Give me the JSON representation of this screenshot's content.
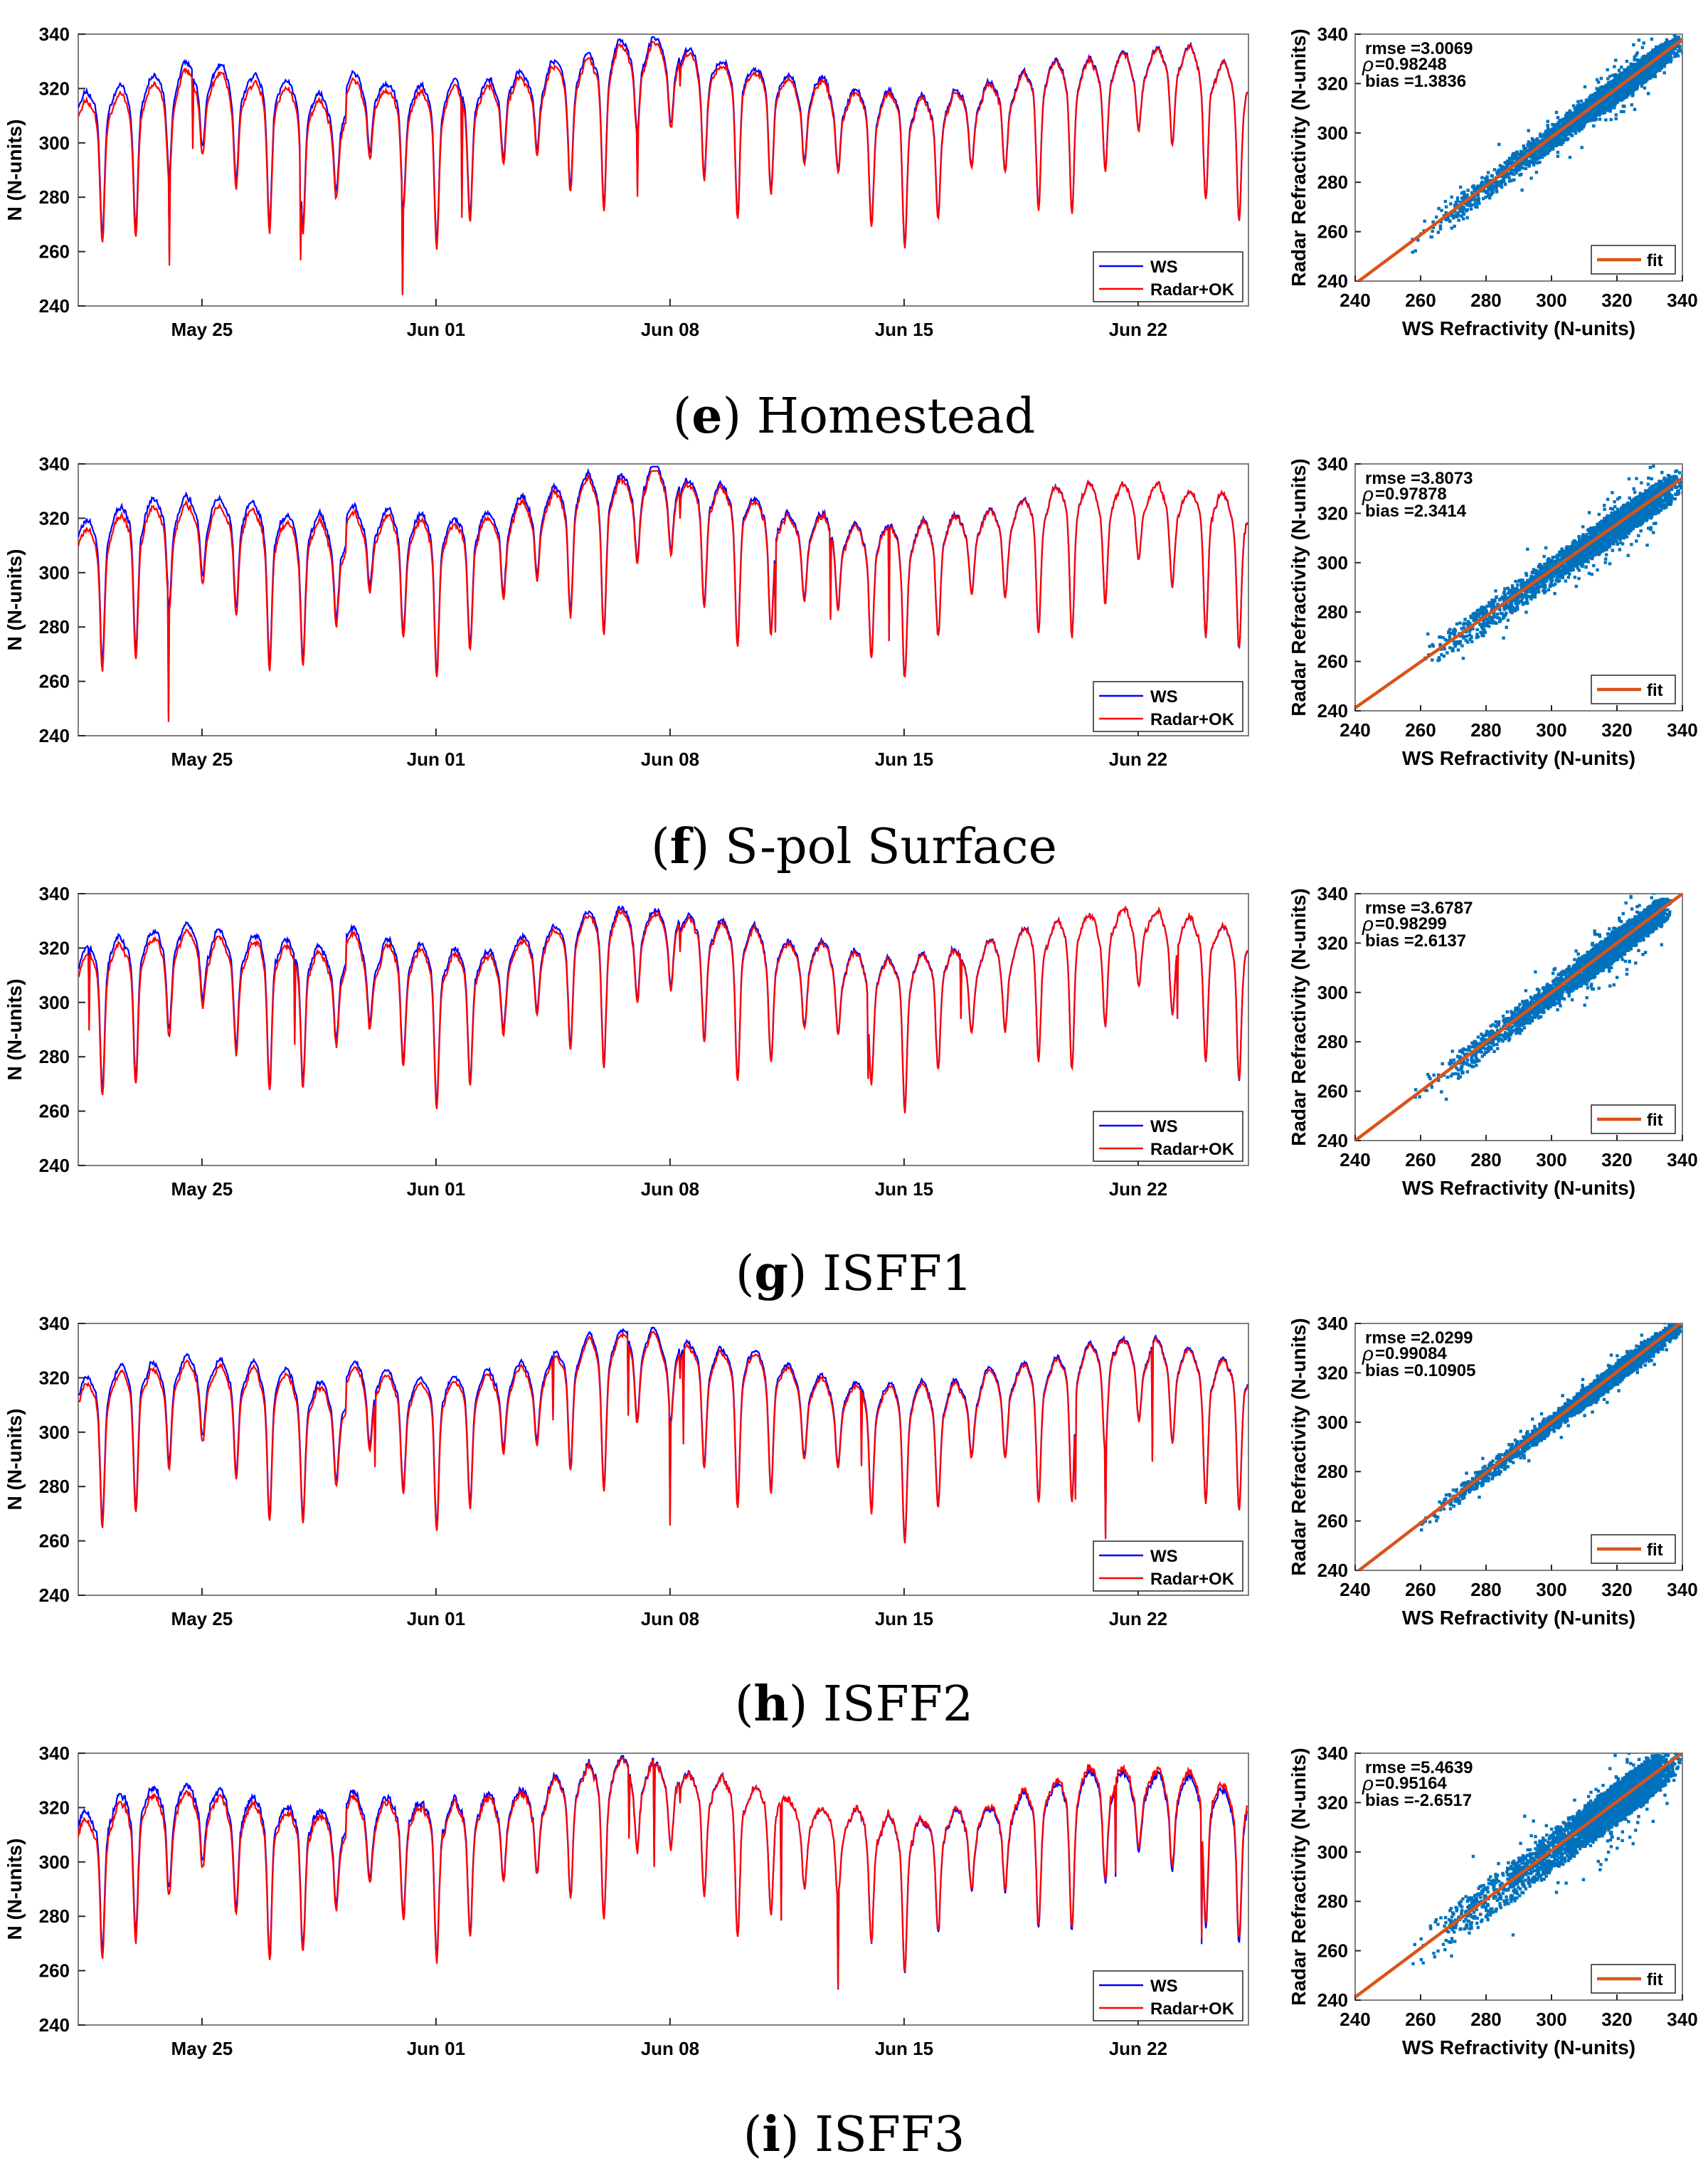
{
  "page": {
    "background": "#ffffff"
  },
  "colors": {
    "ws": "#0000ff",
    "radar": "#ff0000",
    "scatter": "#0072bd",
    "fit": "#d95319",
    "axis": "#262626",
    "frame": "#7f7f7f"
  },
  "axes_common": {
    "timeseries": {
      "ylabel": "N (N-units)",
      "ylim": [
        240,
        340
      ],
      "yticks": [
        "240",
        "260",
        "280",
        "300",
        "320",
        "340"
      ],
      "xrange_days": [
        0,
        35
      ],
      "xtick_days": [
        3.7,
        10.7,
        17.7,
        24.7,
        31.7
      ],
      "xticks": [
        "May 25",
        "Jun 01",
        "Jun 08",
        "Jun 15",
        "Jun 22"
      ],
      "legend": {
        "ws": "WS",
        "radar": "Radar+OK",
        "position": "bottom-right"
      }
    },
    "scatter": {
      "xlabel": "WS Refractivity (N-units)",
      "ylabel": "Radar Refractivity (N-units)",
      "lim": [
        240,
        340
      ],
      "ticks": [
        "240",
        "260",
        "280",
        "300",
        "320",
        "340"
      ],
      "legend": {
        "fit": "fit",
        "position": "bottom-right"
      },
      "rho_symbol": "ρ"
    }
  },
  "chart_data": [
    {
      "id": "e",
      "type": "line",
      "caption_letter": "e",
      "caption_name": "Homestead",
      "series_names": [
        "WS",
        "Radar+OK"
      ],
      "stats": {
        "rmse": "rmse =3.0069",
        "rho": "=0.98248",
        "bias": "bias =1.3836"
      },
      "fit": {
        "slope": 0.99,
        "intercept": 1.3
      },
      "seed": 11,
      "noise": 4.0
    },
    {
      "id": "f",
      "type": "line",
      "caption_letter": "f",
      "caption_name": "S-pol Surface",
      "series_names": [
        "WS",
        "Radar+OK"
      ],
      "stats": {
        "rmse": "rmse =3.8073",
        "rho": "=0.97878",
        "bias": "bias =2.3414"
      },
      "fit": {
        "slope": 0.93,
        "intercept": 18.0
      },
      "seed": 23,
      "noise": 4.8
    },
    {
      "id": "g",
      "type": "line",
      "caption_letter": "g",
      "caption_name": "ISFF1",
      "series_names": [
        "WS",
        "Radar+OK"
      ],
      "stats": {
        "rmse": "rmse =3.6787",
        "rho": "=0.98299",
        "bias": "bias =2.6137"
      },
      "fit": {
        "slope": 1.0,
        "intercept": 0.0
      },
      "seed": 37,
      "noise": 4.4
    },
    {
      "id": "h",
      "type": "line",
      "caption_letter": "h",
      "caption_name": "ISFF2",
      "series_names": [
        "WS",
        "Radar+OK"
      ],
      "stats": {
        "rmse": "rmse =2.0299",
        "rho": "=0.99084",
        "bias": "bias =0.10905"
      },
      "fit": {
        "slope": 1.02,
        "intercept": -6.0
      },
      "seed": 41,
      "noise": 2.6
    },
    {
      "id": "i",
      "type": "line",
      "caption_letter": "i",
      "caption_name": "ISFF3",
      "series_names": [
        "WS",
        "Radar+OK"
      ],
      "stats": {
        "rmse": "rmse =5.4639",
        "rho": "=0.95164",
        "bias": "bias =-2.6517"
      },
      "fit": {
        "slope": 0.99,
        "intercept": 3.6
      },
      "seed": 53,
      "noise": 6.8
    }
  ]
}
